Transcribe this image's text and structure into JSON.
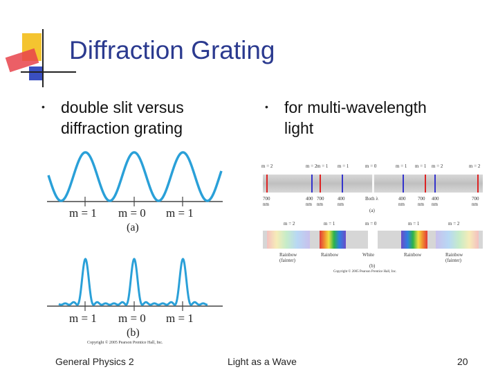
{
  "slide": {
    "title": "Diffraction Grating",
    "bullets": [
      {
        "text_line1": "double slit versus",
        "text_line2": "diffraction grating"
      },
      {
        "text_line1": "for multi-wavelength",
        "text_line2": "light"
      }
    ],
    "footer": {
      "left": "General Physics 2",
      "center": "Light as a Wave",
      "right": "20"
    },
    "colors": {
      "title": "#2b3a8f",
      "wave": "#2aa0d8",
      "deco_yellow": "#f4c430",
      "deco_red": "#e8434b",
      "deco_blue": "#3a4fc0"
    }
  },
  "figure_left": {
    "a": {
      "m_left": "m = 1",
      "m_center": "m = 0",
      "m_right": "m = 1",
      "caption": "(a)"
    },
    "b": {
      "m_left": "m = 1",
      "m_center": "m = 0",
      "m_right": "m = 1",
      "caption": "(b)"
    },
    "copyright": "Copyright © 2005 Pearson Prentice Hall, Inc."
  },
  "figure_right": {
    "a": {
      "top_labels": [
        "m = 2",
        "m = 2",
        "m = 1",
        "m = 1",
        "m = 0",
        "m = 1",
        "m = 1",
        "m = 2",
        "m = 2"
      ],
      "bottom_labels": [
        {
          "l1": "700",
          "l2": "nm"
        },
        {
          "l1": "400",
          "l2": "nm"
        },
        {
          "l1": "700",
          "l2": "nm"
        },
        {
          "l1": "400",
          "l2": "nm"
        },
        {
          "l1": "Both λ",
          "l2": ""
        },
        {
          "l1": "400",
          "l2": "nm"
        },
        {
          "l1": "700",
          "l2": "nm"
        },
        {
          "l1": "400",
          "l2": "nm"
        },
        {
          "l1": "700",
          "l2": "nm"
        }
      ],
      "caption": "(a)"
    },
    "b": {
      "top_labels": [
        "m = 2",
        "m = 1",
        "m = 0",
        "m = 1",
        "m = 2"
      ],
      "bottom_labels": [
        {
          "l1": "Rainbow",
          "l2": "(fainter)"
        },
        {
          "l1": "Rainbow",
          "l2": ""
        },
        {
          "l1": "White",
          "l2": ""
        },
        {
          "l1": "Rainbow",
          "l2": ""
        },
        {
          "l1": "Rainbow",
          "l2": "(fainter)"
        }
      ],
      "caption": "(b)",
      "copyright": "Copyright © 2005 Pearson Prentice Hall, Inc."
    }
  }
}
